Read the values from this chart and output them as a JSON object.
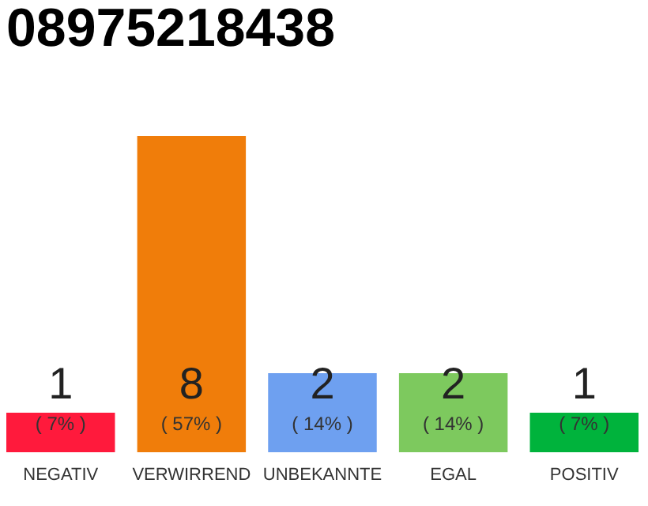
{
  "chart_data": {
    "type": "bar",
    "title": "08975218438",
    "categories": [
      "NEGATIV",
      "VERWIRREND",
      "UNBEKANNTE",
      "EGAL",
      "POSITIV"
    ],
    "values": [
      1,
      8,
      2,
      2,
      1
    ],
    "colors": [
      "#ff1a3c",
      "#f07d0a",
      "#6ea0f0",
      "#7dc95e",
      "#00b33c"
    ],
    "value_labels": [
      "1",
      "8",
      "2",
      "2",
      "1"
    ],
    "annotations": [
      "( 7% )",
      "( 57% )",
      "( 14% )",
      "( 14% )",
      "( 7% )"
    ],
    "grid": false
  }
}
